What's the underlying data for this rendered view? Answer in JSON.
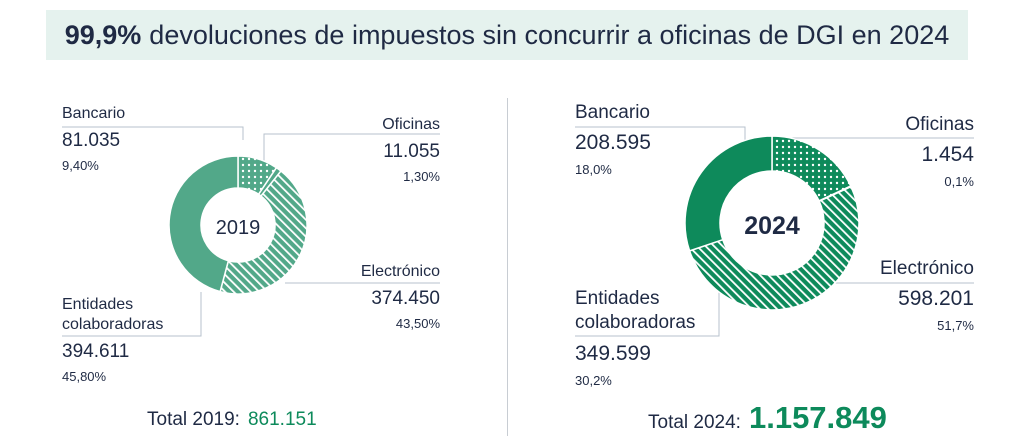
{
  "banner": {
    "bold": "99,9%",
    "rest": "devoluciones de impuestos sin concurrir a oficinas de DGI en 2024"
  },
  "colors": {
    "fill2019": "#52a889",
    "fill2024": "#0e8a5b",
    "line": "#b7c2cc",
    "text": "#1f2a44",
    "accent": "#0d8a5b",
    "banner_bg": "#e5f2ee"
  },
  "chart_data": [
    {
      "type": "pie",
      "title": "2019",
      "categories": [
        "Bancario",
        "Oficinas",
        "Electrónico",
        "Entidades colaboradoras"
      ],
      "values": [
        81035,
        11055,
        374450,
        394611
      ],
      "percents": [
        9.4,
        1.3,
        43.5,
        45.8
      ],
      "patterns": [
        "dots",
        "solid",
        "stripes",
        "solid"
      ],
      "labels": {
        "bancario": {
          "name": "Bancario",
          "value": "81.035",
          "pct": "9,40%"
        },
        "oficinas": {
          "name": "Oficinas",
          "value": "11.055",
          "pct": "1,30%"
        },
        "electronico": {
          "name": "Electrónico",
          "value": "374.450",
          "pct": "43,50%"
        },
        "entidades": {
          "name1": "Entidades",
          "name2": "colaboradoras",
          "value": "394.611",
          "pct": "45,80%"
        }
      },
      "total_label": "Total 2019:",
      "total_value": "861.151"
    },
    {
      "type": "pie",
      "title": "2024",
      "categories": [
        "Bancario",
        "Oficinas",
        "Electrónico",
        "Entidades colaboradoras"
      ],
      "values": [
        208595,
        1454,
        598201,
        349599
      ],
      "percents": [
        18.0,
        0.1,
        51.7,
        30.2
      ],
      "patterns": [
        "dots",
        "solid",
        "stripes",
        "solid"
      ],
      "labels": {
        "bancario": {
          "name": "Bancario",
          "value": "208.595",
          "pct": "18,0%"
        },
        "oficinas": {
          "name": "Oficinas",
          "value": "1.454",
          "pct": "0,1%"
        },
        "electronico": {
          "name": "Electrónico",
          "value": "598.201",
          "pct": "51,7%"
        },
        "entidades": {
          "name1": "Entidades",
          "name2": "colaboradoras",
          "value": "349.599",
          "pct": "30,2%"
        }
      },
      "total_label": "Total 2024:",
      "total_value": "1.157.849"
    }
  ]
}
